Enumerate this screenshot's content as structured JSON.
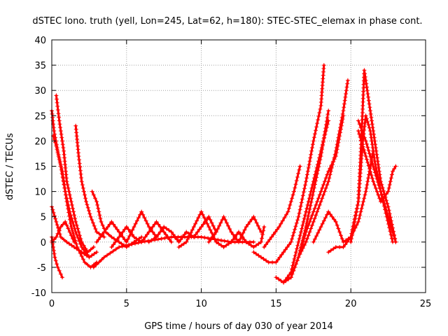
{
  "chart_data": {
    "type": "scatter",
    "title": "dSTEC Iono. truth (yell, Lon=245, Lat=62, h=180): STEC-STEC_elemax in phase cont.",
    "xlabel": "GPS time / hours of day 030 of year 2014",
    "ylabel": "dSTEC  / TECUs",
    "xlim": [
      0,
      25
    ],
    "ylim": [
      -10,
      40
    ],
    "xticks": [
      0,
      5,
      10,
      15,
      20,
      25
    ],
    "yticks": [
      -10,
      -5,
      0,
      5,
      10,
      15,
      20,
      25,
      30,
      35,
      40
    ],
    "grid": true,
    "marker": "+",
    "color": "#ff0000",
    "series": [
      {
        "values": [
          [
            0.0,
            26
          ],
          [
            0.15,
            22
          ],
          [
            0.4,
            18
          ],
          [
            0.7,
            14
          ],
          [
            1.0,
            8
          ],
          [
            1.3,
            3
          ],
          [
            1.7,
            -1
          ],
          [
            2.2,
            -4
          ],
          [
            2.6,
            -5
          ],
          [
            3.0,
            -4
          ]
        ]
      },
      {
        "values": [
          [
            0.3,
            29
          ],
          [
            0.5,
            24
          ],
          [
            0.8,
            18
          ],
          [
            1.0,
            12
          ],
          [
            1.3,
            8
          ],
          [
            1.6,
            4
          ],
          [
            2.0,
            0
          ],
          [
            2.4,
            -2
          ],
          [
            2.8,
            -1
          ]
        ]
      },
      {
        "values": [
          [
            0.1,
            21
          ],
          [
            0.3,
            19
          ],
          [
            0.6,
            15
          ],
          [
            0.9,
            10
          ],
          [
            1.2,
            6
          ],
          [
            1.6,
            2
          ],
          [
            2.0,
            -1
          ],
          [
            2.5,
            -3
          ],
          [
            3.0,
            -2
          ]
        ]
      },
      {
        "values": [
          [
            1.6,
            23
          ],
          [
            1.8,
            17
          ],
          [
            2.0,
            12
          ],
          [
            2.3,
            8
          ],
          [
            2.6,
            5
          ],
          [
            3.0,
            2
          ],
          [
            3.5,
            1
          ]
        ]
      },
      {
        "values": [
          [
            0.0,
            7
          ],
          [
            0.3,
            4
          ],
          [
            0.6,
            1
          ],
          [
            1.0,
            0
          ],
          [
            1.5,
            -1
          ],
          [
            2.0,
            -2
          ],
          [
            2.5,
            -3
          ]
        ]
      },
      {
        "values": [
          [
            0.0,
            1
          ],
          [
            0.2,
            -3
          ],
          [
            0.4,
            -5
          ],
          [
            0.7,
            -7
          ]
        ]
      },
      {
        "values": [
          [
            0.0,
            0
          ],
          [
            0.3,
            1
          ],
          [
            0.6,
            3
          ],
          [
            0.9,
            4
          ],
          [
            1.2,
            2
          ],
          [
            1.5,
            0
          ]
        ]
      },
      {
        "values": [
          [
            2.7,
            10
          ],
          [
            3.0,
            8
          ],
          [
            3.3,
            4
          ],
          [
            3.6,
            2
          ],
          [
            4.0,
            1
          ],
          [
            4.5,
            0
          ],
          [
            5.0,
            -1
          ],
          [
            5.5,
            0
          ],
          [
            6.0,
            1
          ]
        ]
      },
      {
        "values": [
          [
            2.8,
            -5
          ],
          [
            3.5,
            -3
          ],
          [
            4.5,
            -1
          ],
          [
            6.0,
            0
          ],
          [
            8.0,
            1
          ],
          [
            10.0,
            1
          ],
          [
            12.0,
            0
          ],
          [
            13.5,
            0
          ]
        ]
      },
      {
        "values": [
          [
            3.0,
            0
          ],
          [
            3.5,
            2
          ],
          [
            4.0,
            4
          ],
          [
            4.5,
            2
          ],
          [
            5.0,
            0
          ],
          [
            5.5,
            3
          ],
          [
            6.0,
            6
          ],
          [
            6.5,
            3
          ],
          [
            7.0,
            1
          ]
        ]
      },
      {
        "values": [
          [
            4.0,
            -1
          ],
          [
            4.5,
            1
          ],
          [
            5.0,
            3
          ],
          [
            5.5,
            1
          ],
          [
            6.0,
            0
          ],
          [
            6.5,
            2
          ],
          [
            7.0,
            4
          ],
          [
            7.5,
            2
          ],
          [
            8.0,
            0
          ]
        ]
      },
      {
        "values": [
          [
            6.5,
            0
          ],
          [
            7.0,
            1
          ],
          [
            7.5,
            3
          ],
          [
            8.0,
            2
          ],
          [
            8.5,
            0
          ],
          [
            9.0,
            2
          ],
          [
            9.5,
            1
          ],
          [
            10.0,
            3
          ],
          [
            10.5,
            5
          ],
          [
            11.0,
            2
          ]
        ]
      },
      {
        "values": [
          [
            8.5,
            -1
          ],
          [
            9.0,
            0
          ],
          [
            9.5,
            3
          ],
          [
            10.0,
            6
          ],
          [
            10.5,
            3
          ],
          [
            11.0,
            0
          ],
          [
            11.5,
            -1
          ]
        ]
      },
      {
        "values": [
          [
            10.5,
            0
          ],
          [
            11.0,
            2
          ],
          [
            11.5,
            5
          ],
          [
            12.0,
            2
          ],
          [
            12.5,
            0
          ],
          [
            13.0,
            3
          ],
          [
            13.5,
            5
          ],
          [
            14.0,
            2
          ]
        ]
      },
      {
        "values": [
          [
            11.5,
            -1
          ],
          [
            12.0,
            0
          ],
          [
            12.5,
            2
          ],
          [
            13.0,
            0
          ],
          [
            13.5,
            -1
          ],
          [
            14.0,
            0
          ],
          [
            14.2,
            3
          ]
        ]
      },
      {
        "values": [
          [
            13.5,
            -2
          ],
          [
            14.0,
            -3
          ],
          [
            14.5,
            -4
          ],
          [
            15.0,
            -4
          ],
          [
            15.5,
            -2
          ],
          [
            16.0,
            0
          ],
          [
            16.5,
            5
          ],
          [
            17.0,
            12
          ],
          [
            17.5,
            20
          ],
          [
            18.0,
            27
          ],
          [
            18.2,
            35
          ]
        ]
      },
      {
        "values": [
          [
            14.2,
            -1
          ],
          [
            14.7,
            1
          ],
          [
            15.2,
            3
          ],
          [
            15.8,
            6
          ],
          [
            16.2,
            10
          ],
          [
            16.6,
            15
          ]
        ]
      },
      {
        "values": [
          [
            15.0,
            -7
          ],
          [
            15.5,
            -8
          ],
          [
            16.0,
            -7
          ],
          [
            16.5,
            -3
          ],
          [
            17.0,
            3
          ],
          [
            17.5,
            10
          ],
          [
            18.0,
            17
          ],
          [
            18.5,
            26
          ]
        ]
      },
      {
        "values": [
          [
            15.5,
            -8
          ],
          [
            16.0,
            -6
          ],
          [
            16.5,
            0
          ],
          [
            17.0,
            6
          ],
          [
            17.5,
            12
          ],
          [
            18.0,
            18
          ],
          [
            18.5,
            24
          ]
        ]
      },
      {
        "values": [
          [
            16.0,
            -7
          ],
          [
            16.5,
            -3
          ],
          [
            17.0,
            2
          ],
          [
            17.5,
            6
          ],
          [
            18.0,
            10
          ],
          [
            18.5,
            14
          ],
          [
            19.0,
            17
          ],
          [
            19.5,
            25
          ]
        ]
      },
      {
        "values": [
          [
            16.5,
            -3
          ],
          [
            17.0,
            0
          ],
          [
            17.5,
            4
          ],
          [
            18.0,
            8
          ],
          [
            18.5,
            12
          ],
          [
            19.0,
            18
          ],
          [
            19.5,
            26
          ],
          [
            19.8,
            32
          ]
        ]
      },
      {
        "values": [
          [
            17.5,
            0
          ],
          [
            18.0,
            3
          ],
          [
            18.5,
            6
          ],
          [
            19.0,
            4
          ],
          [
            19.5,
            0
          ],
          [
            20.0,
            1
          ],
          [
            20.5,
            4
          ],
          [
            21.0,
            10
          ],
          [
            21.5,
            18
          ]
        ]
      },
      {
        "values": [
          [
            18.5,
            -2
          ],
          [
            19.0,
            -1
          ],
          [
            19.5,
            -1
          ],
          [
            20.0,
            1
          ],
          [
            20.5,
            8
          ],
          [
            20.7,
            20
          ],
          [
            20.9,
            34
          ],
          [
            21.2,
            28
          ],
          [
            21.5,
            22
          ],
          [
            22.0,
            12
          ],
          [
            22.5,
            7
          ],
          [
            23.0,
            0
          ]
        ]
      },
      {
        "values": [
          [
            20.0,
            0
          ],
          [
            20.5,
            8
          ],
          [
            20.8,
            20
          ],
          [
            21.0,
            25
          ],
          [
            21.3,
            22
          ],
          [
            21.6,
            16
          ],
          [
            22.0,
            10
          ],
          [
            22.4,
            5
          ],
          [
            22.8,
            0
          ]
        ]
      },
      {
        "values": [
          [
            20.5,
            22
          ],
          [
            21.0,
            17
          ],
          [
            21.5,
            12
          ],
          [
            22.0,
            8
          ],
          [
            22.5,
            10
          ],
          [
            22.8,
            14
          ],
          [
            23.0,
            15
          ]
        ]
      },
      {
        "values": [
          [
            20.5,
            24
          ],
          [
            21.0,
            20
          ],
          [
            21.5,
            15
          ],
          [
            22.0,
            10
          ],
          [
            22.5,
            5
          ],
          [
            23.0,
            0
          ]
        ]
      }
    ]
  }
}
